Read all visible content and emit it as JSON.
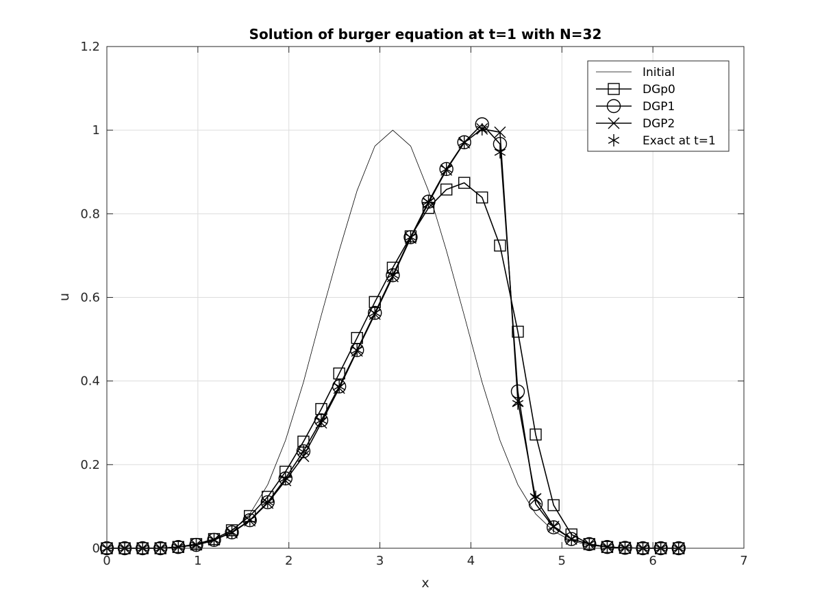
{
  "chart_data": {
    "type": "line",
    "title": "Solution of burger equation at t=1 with N=32",
    "xlabel": "x",
    "ylabel": "u",
    "xlim": [
      0,
      7
    ],
    "ylim": [
      0,
      1.2
    ],
    "xticks": [
      0,
      1,
      2,
      3,
      4,
      5,
      6,
      7
    ],
    "yticks": [
      0,
      0.2,
      0.4,
      0.6,
      0.8,
      1,
      1.2
    ],
    "xtick_labels": [
      "0",
      "1",
      "2",
      "3",
      "4",
      "5",
      "6",
      "7"
    ],
    "ytick_labels": [
      "0",
      "0.2",
      "0.4",
      "0.6",
      "0.8",
      "1",
      "1.2"
    ],
    "grid": true,
    "legend_position": "top-right",
    "series": [
      {
        "name": "Initial",
        "marker": "none",
        "line": "thin",
        "x": [
          0,
          0.196,
          0.393,
          0.589,
          0.785,
          0.982,
          1.178,
          1.374,
          1.571,
          1.767,
          1.963,
          2.16,
          2.356,
          2.553,
          2.749,
          2.945,
          3.142,
          3.338,
          3.534,
          3.731,
          3.927,
          4.123,
          4.32,
          4.516,
          4.712,
          4.909,
          5.105,
          5.301,
          5.498,
          5.694,
          5.89,
          6.087,
          6.283
        ],
        "y": [
          0,
          0,
          0.001,
          0.001,
          0.003,
          0.007,
          0.018,
          0.041,
          0.082,
          0.152,
          0.258,
          0.397,
          0.557,
          0.712,
          0.855,
          0.962,
          1.0,
          0.962,
          0.855,
          0.712,
          0.557,
          0.397,
          0.258,
          0.152,
          0.082,
          0.041,
          0.018,
          0.007,
          0.003,
          0.001,
          0.001,
          0,
          0
        ]
      },
      {
        "name": "DGp0",
        "marker": "square",
        "line": "thick",
        "x": [
          0,
          0.196,
          0.393,
          0.589,
          0.785,
          0.982,
          1.178,
          1.374,
          1.571,
          1.767,
          1.963,
          2.16,
          2.356,
          2.553,
          2.749,
          2.945,
          3.142,
          3.338,
          3.534,
          3.731,
          3.927,
          4.123,
          4.32,
          4.516,
          4.712,
          4.909,
          5.105,
          5.301,
          5.498,
          5.694,
          5.89,
          6.087,
          6.283
        ],
        "y": [
          0,
          0,
          0,
          0,
          0.003,
          0.01,
          0.022,
          0.043,
          0.077,
          0.123,
          0.183,
          0.255,
          0.333,
          0.418,
          0.503,
          0.589,
          0.671,
          0.746,
          0.814,
          0.858,
          0.874,
          0.839,
          0.724,
          0.518,
          0.272,
          0.103,
          0.033,
          0.01,
          0.003,
          0.001,
          0,
          0,
          0
        ]
      },
      {
        "name": "DGP1",
        "marker": "circle",
        "line": "thick",
        "x": [
          0,
          0.196,
          0.393,
          0.589,
          0.785,
          0.982,
          1.178,
          1.374,
          1.571,
          1.767,
          1.963,
          2.16,
          2.356,
          2.553,
          2.749,
          2.945,
          3.142,
          3.338,
          3.534,
          3.731,
          3.927,
          4.123,
          4.32,
          4.516,
          4.712,
          4.909,
          5.105,
          5.301,
          5.498,
          5.694,
          5.89,
          6.087,
          6.283
        ],
        "y": [
          0,
          0,
          0,
          0,
          0.003,
          0.008,
          0.02,
          0.038,
          0.067,
          0.11,
          0.167,
          0.232,
          0.306,
          0.387,
          0.474,
          0.563,
          0.653,
          0.744,
          0.829,
          0.907,
          0.971,
          1.014,
          0.967,
          0.375,
          0.106,
          0.05,
          0.022,
          0.01,
          0.003,
          0.001,
          0,
          0,
          0
        ]
      },
      {
        "name": "DGP2",
        "marker": "x",
        "line": "thick",
        "x": [
          0,
          0.196,
          0.393,
          0.589,
          0.785,
          0.982,
          1.178,
          1.374,
          1.571,
          1.767,
          1.963,
          2.16,
          2.356,
          2.553,
          2.749,
          2.945,
          3.142,
          3.338,
          3.534,
          3.731,
          3.927,
          4.123,
          4.32,
          4.516,
          4.712,
          4.909,
          5.105,
          5.301,
          5.498,
          5.694,
          5.89,
          6.087,
          6.283
        ],
        "y": [
          0,
          0,
          0,
          0,
          0.003,
          0.008,
          0.02,
          0.037,
          0.066,
          0.108,
          0.162,
          0.22,
          0.3,
          0.383,
          0.472,
          0.56,
          0.65,
          0.742,
          0.826,
          0.905,
          0.97,
          1.003,
          0.995,
          0.352,
          0.118,
          0.052,
          0.022,
          0.01,
          0.003,
          0.001,
          0,
          0,
          0
        ]
      },
      {
        "name": "Exact at t=1",
        "marker": "asterisk",
        "line": "none",
        "x": [
          0,
          0.196,
          0.393,
          0.589,
          0.785,
          0.982,
          1.178,
          1.374,
          1.571,
          1.767,
          1.963,
          2.16,
          2.356,
          2.553,
          2.749,
          2.945,
          3.142,
          3.338,
          3.534,
          3.731,
          3.927,
          4.123,
          4.32,
          4.516,
          4.712,
          4.909,
          5.105,
          5.301,
          5.498,
          5.694,
          5.89,
          6.087,
          6.283
        ],
        "y": [
          0,
          0,
          0,
          0,
          0.003,
          0.008,
          0.02,
          0.038,
          0.068,
          0.111,
          0.167,
          0.231,
          0.306,
          0.387,
          0.474,
          0.563,
          0.654,
          0.744,
          0.829,
          0.907,
          0.971,
          1.002,
          0.947,
          0.346,
          0.123,
          0.052,
          0.022,
          0.01,
          0.003,
          0.001,
          0,
          0,
          0
        ]
      }
    ]
  }
}
